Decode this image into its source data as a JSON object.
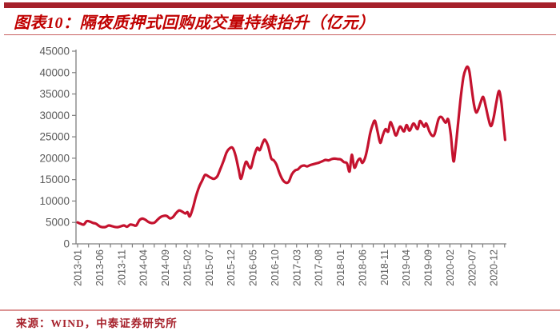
{
  "header": {
    "title": "图表10：隔夜质押式回购成交量持续抬升（亿元）"
  },
  "footer": {
    "source": "来源：WIND，中泰证券研究所"
  },
  "colors": {
    "accent_bar_red": "#A6212B",
    "title_red": "#C00000",
    "underline_red": "#C86060",
    "line_red": "#C4122E",
    "footer_divider_red": "#DC9494",
    "source_red": "#A6212B",
    "axis_gray": "#7F7F7F",
    "label_gray": "#595959"
  },
  "chart_data": {
    "type": "line",
    "title": "隔夜质押式回购成交量持续抬升（亿元）",
    "xlabel": "",
    "ylabel": "",
    "ylim": [
      0,
      45000
    ],
    "ytick_step": 5000,
    "ytick_labels": [
      "0",
      "5000",
      "10000",
      "15000",
      "20000",
      "25000",
      "30000",
      "35000",
      "40000",
      "45000"
    ],
    "grid": false,
    "legend": "none",
    "x_unit": "months since 2013-01",
    "xtick_months": [
      0,
      5,
      10,
      15,
      20,
      25,
      30,
      35,
      40,
      45,
      50,
      55,
      60,
      65,
      70,
      75,
      80,
      85,
      90,
      95
    ],
    "xtick_labels": [
      "2013-01",
      "2013-06",
      "2013-11",
      "2014-04",
      "2014-09",
      "2015-02",
      "2015-07",
      "2015-12",
      "2016-05",
      "2016-10",
      "2017-03",
      "2017-08",
      "2018-01",
      "2018-06",
      "2018-11",
      "2019-04",
      "2019-09",
      "2020-02",
      "2020-07",
      "2020-12"
    ],
    "series": [
      {
        "name": "隔夜质押式回购成交量",
        "points": [
          [
            0,
            5000
          ],
          [
            0.7,
            4700
          ],
          [
            1.4,
            4500
          ],
          [
            2.1,
            5300
          ],
          [
            2.8,
            5200
          ],
          [
            3.5,
            4900
          ],
          [
            4.2,
            4700
          ],
          [
            5,
            4100
          ],
          [
            5.7,
            3900
          ],
          [
            6.4,
            3950
          ],
          [
            7.1,
            4300
          ],
          [
            7.8,
            4150
          ],
          [
            8.5,
            3950
          ],
          [
            9.2,
            3900
          ],
          [
            9.9,
            4100
          ],
          [
            10.6,
            4300
          ],
          [
            11.3,
            4000
          ],
          [
            12,
            4500
          ],
          [
            12.7,
            4400
          ],
          [
            13.4,
            4300
          ],
          [
            14.1,
            5500
          ],
          [
            14.8,
            5900
          ],
          [
            15.5,
            5600
          ],
          [
            16.2,
            5100
          ],
          [
            16.9,
            4850
          ],
          [
            17.6,
            5000
          ],
          [
            18.3,
            5700
          ],
          [
            19,
            6300
          ],
          [
            19.7,
            6550
          ],
          [
            20.4,
            6500
          ],
          [
            21.1,
            5950
          ],
          [
            21.8,
            6300
          ],
          [
            22.5,
            7200
          ],
          [
            23.2,
            7800
          ],
          [
            23.9,
            7500
          ],
          [
            24.6,
            7100
          ],
          [
            25.1,
            7400
          ],
          [
            25.6,
            6400
          ],
          [
            26.3,
            8300
          ],
          [
            27,
            11000
          ],
          [
            27.7,
            13200
          ],
          [
            28.4,
            14700
          ],
          [
            29.1,
            16100
          ],
          [
            29.8,
            15800
          ],
          [
            30.5,
            15400
          ],
          [
            31.2,
            15200
          ],
          [
            31.9,
            15800
          ],
          [
            32.6,
            17500
          ],
          [
            33.3,
            19300
          ],
          [
            34,
            21300
          ],
          [
            34.7,
            22300
          ],
          [
            35.4,
            22400
          ],
          [
            36.1,
            20500
          ],
          [
            36.8,
            17200
          ],
          [
            37.3,
            15200
          ],
          [
            38,
            17800
          ],
          [
            38.5,
            19200
          ],
          [
            39.1,
            18100
          ],
          [
            39.6,
            17800
          ],
          [
            40.3,
            20500
          ],
          [
            41,
            22400
          ],
          [
            41.6,
            21900
          ],
          [
            42.3,
            23700
          ],
          [
            42.8,
            24300
          ],
          [
            43.5,
            22800
          ],
          [
            44.2,
            20000
          ],
          [
            44.8,
            19500
          ],
          [
            45.4,
            18500
          ],
          [
            46.1,
            16500
          ],
          [
            46.8,
            15000
          ],
          [
            47.5,
            14300
          ],
          [
            48.2,
            14500
          ],
          [
            48.9,
            16200
          ],
          [
            49.6,
            17100
          ],
          [
            50.3,
            17400
          ],
          [
            51,
            18100
          ],
          [
            51.7,
            18300
          ],
          [
            52.4,
            18100
          ],
          [
            53.1,
            18400
          ],
          [
            53.8,
            18600
          ],
          [
            54.5,
            18800
          ],
          [
            55.2,
            19000
          ],
          [
            55.9,
            19300
          ],
          [
            56.6,
            19600
          ],
          [
            57.3,
            19500
          ],
          [
            58,
            19800
          ],
          [
            58.7,
            19900
          ],
          [
            59.4,
            19800
          ],
          [
            60.1,
            19700
          ],
          [
            60.8,
            19100
          ],
          [
            61.5,
            18800
          ],
          [
            62.1,
            16900
          ],
          [
            62.6,
            20800
          ],
          [
            63.2,
            17800
          ],
          [
            63.9,
            19300
          ],
          [
            64.5,
            19900
          ],
          [
            65,
            18900
          ],
          [
            65.6,
            20000
          ],
          [
            66.2,
            22500
          ],
          [
            66.8,
            25800
          ],
          [
            67.4,
            27900
          ],
          [
            67.9,
            28700
          ],
          [
            68.5,
            26200
          ],
          [
            69.1,
            23600
          ],
          [
            69.7,
            25400
          ],
          [
            70.3,
            26800
          ],
          [
            70.9,
            26200
          ],
          [
            71.4,
            28400
          ],
          [
            72,
            27200
          ],
          [
            72.7,
            25300
          ],
          [
            73.6,
            27400
          ],
          [
            74.5,
            26250
          ],
          [
            75.1,
            27750
          ],
          [
            75.8,
            26450
          ],
          [
            76.7,
            28100
          ],
          [
            77.6,
            26800
          ],
          [
            78.2,
            28700
          ],
          [
            79.1,
            27375
          ],
          [
            79.6,
            28100
          ],
          [
            80.3,
            26300
          ],
          [
            80.9,
            25300
          ],
          [
            81.5,
            25600
          ],
          [
            82.4,
            29100
          ],
          [
            83.1,
            29600
          ],
          [
            84,
            28300
          ],
          [
            84.6,
            29100
          ],
          [
            85.2,
            25500
          ],
          [
            85.8,
            19300
          ],
          [
            86.3,
            22500
          ],
          [
            86.9,
            28500
          ],
          [
            87.5,
            34500
          ],
          [
            88.1,
            39000
          ],
          [
            88.7,
            41000
          ],
          [
            89.1,
            41300
          ],
          [
            89.5,
            40000
          ],
          [
            90,
            36000
          ],
          [
            90.5,
            32500
          ],
          [
            91,
            30700
          ],
          [
            91.5,
            31500
          ],
          [
            92,
            33000
          ],
          [
            92.6,
            34300
          ],
          [
            93.2,
            32000
          ],
          [
            93.8,
            29200
          ],
          [
            94.4,
            27500
          ],
          [
            95,
            29500
          ],
          [
            95.6,
            33000
          ],
          [
            96.2,
            35700
          ],
          [
            96.7,
            33500
          ],
          [
            97.1,
            29500
          ],
          [
            97.6,
            24300
          ]
        ]
      }
    ]
  }
}
